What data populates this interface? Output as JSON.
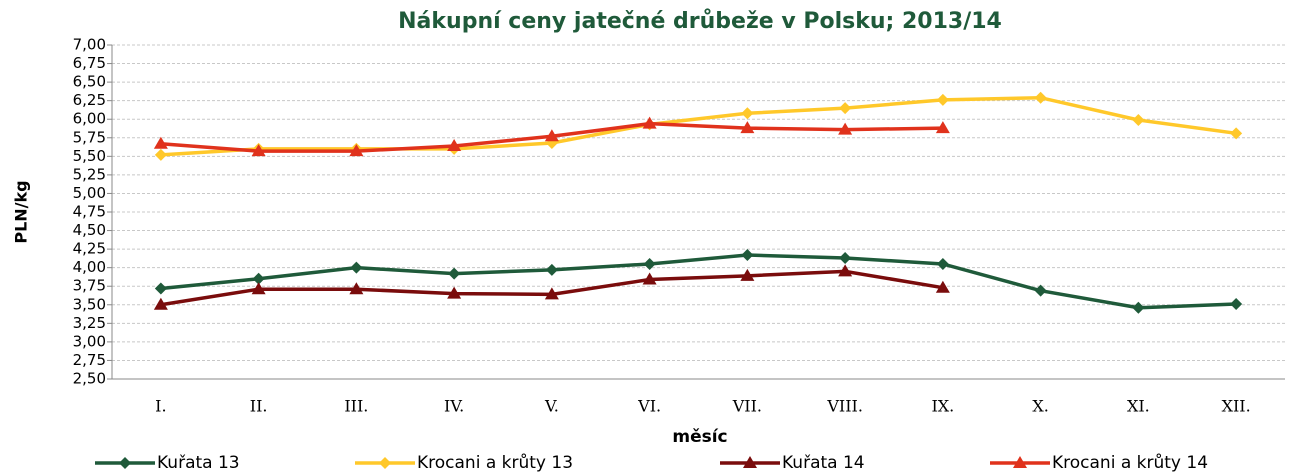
{
  "chart_data": {
    "type": "line",
    "title": "Nákupní ceny jatečné drůbeže v Polsku; 2013/14",
    "y_label": "PLN/kg",
    "x_label": "měsíc",
    "categories": [
      "I.",
      "II.",
      "III.",
      "IV.",
      "V.",
      "VI.",
      "VII.",
      "VIII.",
      "IX.",
      "X.",
      "XI.",
      "XII."
    ],
    "series": [
      {
        "name": "Kuřata 13",
        "color": "#1f5a3a",
        "marker": "diamond",
        "values": [
          3.72,
          3.85,
          4.0,
          3.92,
          3.97,
          4.05,
          4.17,
          4.13,
          4.05,
          3.69,
          3.46,
          3.51
        ]
      },
      {
        "name": "Krocani a krůty 13",
        "color": "#ffc82a",
        "marker": "diamond",
        "values": [
          5.52,
          5.6,
          5.6,
          5.6,
          5.68,
          5.93,
          6.08,
          6.15,
          6.26,
          6.29,
          5.99,
          5.81
        ]
      },
      {
        "name": "Kuřata 14",
        "color": "#7a0c0c",
        "marker": "triangle",
        "values": [
          3.5,
          3.71,
          3.71,
          3.65,
          3.64,
          3.84,
          3.89,
          3.95,
          3.73,
          null,
          null,
          null
        ]
      },
      {
        "name": "Krocani a krůty 14",
        "color": "#e0321c",
        "marker": "triangle",
        "values": [
          5.67,
          5.57,
          5.57,
          5.64,
          5.77,
          5.94,
          5.88,
          5.86,
          5.88,
          null,
          null,
          null
        ]
      }
    ],
    "ylim": [
      2.5,
      7.0
    ],
    "yticks": [
      {
        "value": 2.5,
        "label": "2,50"
      },
      {
        "value": 2.75,
        "label": "2,75"
      },
      {
        "value": 3.0,
        "label": "3,00"
      },
      {
        "value": 3.25,
        "label": "3,25"
      },
      {
        "value": 3.5,
        "label": "3,50"
      },
      {
        "value": 3.75,
        "label": "3,75"
      },
      {
        "value": 4.0,
        "label": "4,00"
      },
      {
        "value": 4.25,
        "label": "4,25"
      },
      {
        "value": 4.5,
        "label": "4,50"
      },
      {
        "value": 4.75,
        "label": "4,75"
      },
      {
        "value": 5.0,
        "label": "5,00"
      },
      {
        "value": 5.25,
        "label": "5,25"
      },
      {
        "value": 5.5,
        "label": "5,50"
      },
      {
        "value": 5.75,
        "label": "5,75"
      },
      {
        "value": 6.0,
        "label": "6,00"
      },
      {
        "value": 6.25,
        "label": "6,25"
      },
      {
        "value": 6.5,
        "label": "6,50"
      },
      {
        "value": 6.75,
        "label": "6,75"
      },
      {
        "value": 7.0,
        "label": "7,00"
      }
    ],
    "grid": true,
    "legend": "bottom"
  }
}
